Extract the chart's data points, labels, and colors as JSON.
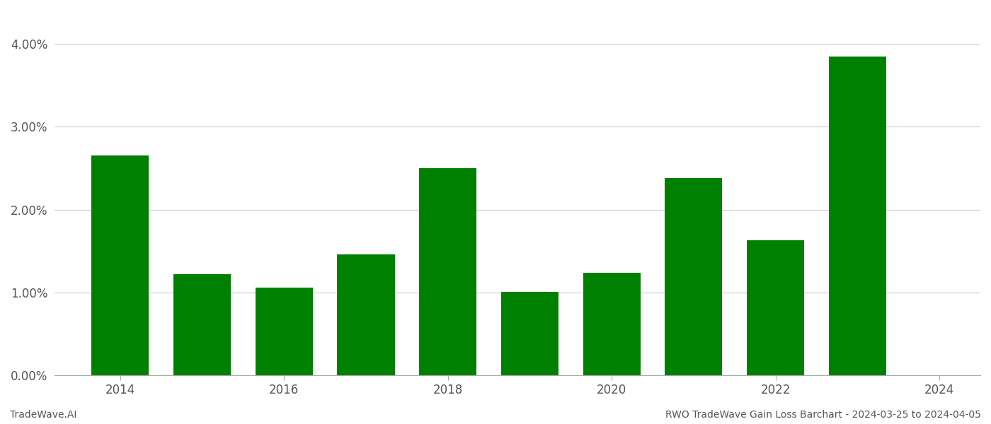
{
  "years": [
    2014,
    2015,
    2016,
    2017,
    2018,
    2019,
    2020,
    2021,
    2022,
    2023
  ],
  "values": [
    0.0265,
    0.0122,
    0.0106,
    0.0146,
    0.025,
    0.0101,
    0.0124,
    0.0238,
    0.0163,
    0.0385
  ],
  "bar_color": "#008000",
  "ylim": [
    0,
    0.044
  ],
  "yticks": [
    0.0,
    0.01,
    0.02,
    0.03,
    0.04
  ],
  "ytick_labels": [
    "0.00%",
    "1.00%",
    "2.00%",
    "3.00%",
    "4.00%"
  ],
  "xtick_positions": [
    2014,
    2016,
    2018,
    2020,
    2022,
    2024
  ],
  "xtick_labels": [
    "2014",
    "2016",
    "2018",
    "2020",
    "2022",
    "2024"
  ],
  "footer_left": "TradeWave.AI",
  "footer_right": "RWO TradeWave Gain Loss Barchart - 2024-03-25 to 2024-04-05",
  "background_color": "#ffffff",
  "grid_color": "#cccccc",
  "bar_width": 0.7,
  "tick_fontsize": 12,
  "footer_fontsize": 10,
  "xlim_left": 2013.2,
  "xlim_right": 2024.5
}
